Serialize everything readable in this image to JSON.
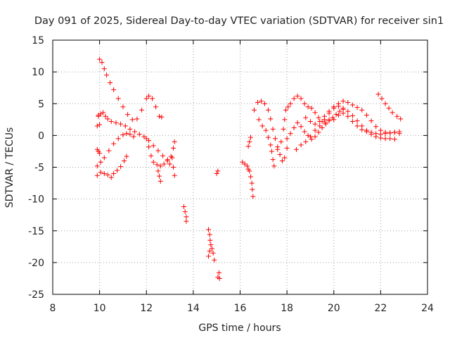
{
  "chart_data": {
    "type": "scatter",
    "title": "Day 091 of 2025, Sidereal Day-to-day VTEC variation (SDTVAR) for receiver sin1",
    "xlabel": "GPS time / hours",
    "ylabel": "SDTVAR / TECUs",
    "xlim": [
      8,
      24
    ],
    "ylim": [
      -25,
      15
    ],
    "xticks": [
      "8",
      "10",
      "12",
      "14",
      "16",
      "18",
      "20",
      "22",
      "24"
    ],
    "yticks": [
      "15",
      "10",
      "5",
      "0",
      "-5",
      "-10",
      "-15",
      "-20",
      "-25"
    ],
    "grid": true,
    "marker": "plus",
    "series": [
      {
        "name": "sin1",
        "color": "#ff0000",
        "points": [
          [
            10.0,
            12.0
          ],
          [
            10.1,
            11.5
          ],
          [
            10.2,
            10.5
          ],
          [
            10.3,
            9.5
          ],
          [
            10.45,
            8.3
          ],
          [
            10.6,
            7.2
          ],
          [
            10.8,
            5.8
          ],
          [
            11.0,
            4.5
          ],
          [
            11.2,
            3.3
          ],
          [
            11.4,
            2.5
          ],
          [
            11.6,
            2.6
          ],
          [
            11.8,
            4.0
          ],
          [
            12.0,
            5.8
          ],
          [
            12.1,
            6.2
          ],
          [
            12.25,
            5.8
          ],
          [
            12.4,
            4.5
          ],
          [
            12.55,
            3.0
          ],
          [
            12.65,
            2.9
          ],
          [
            9.95,
            3.2
          ],
          [
            10.05,
            3.4
          ],
          [
            10.15,
            3.6
          ],
          [
            10.25,
            3.0
          ],
          [
            10.35,
            2.6
          ],
          [
            10.5,
            2.2
          ],
          [
            10.7,
            2.0
          ],
          [
            10.9,
            1.8
          ],
          [
            11.1,
            1.5
          ],
          [
            11.3,
            1.0
          ],
          [
            11.5,
            0.6
          ],
          [
            11.7,
            0.2
          ],
          [
            11.9,
            -0.2
          ],
          [
            12.1,
            -0.8
          ],
          [
            12.3,
            -1.6
          ],
          [
            12.5,
            -2.4
          ],
          [
            12.7,
            -3.2
          ],
          [
            12.9,
            -3.8
          ],
          [
            13.05,
            -3.3
          ],
          [
            13.15,
            -2.0
          ],
          [
            13.2,
            -1.0
          ],
          [
            9.9,
            1.5
          ],
          [
            9.95,
            3.0
          ],
          [
            10.0,
            1.7
          ],
          [
            9.9,
            -2.2
          ],
          [
            9.95,
            -2.5
          ],
          [
            10.0,
            -2.8
          ],
          [
            9.9,
            -4.8
          ],
          [
            10.05,
            -4.2
          ],
          [
            10.2,
            -3.5
          ],
          [
            10.4,
            -2.4
          ],
          [
            10.6,
            -1.3
          ],
          [
            10.8,
            -0.5
          ],
          [
            11.0,
            0.1
          ],
          [
            11.15,
            0.3
          ],
          [
            11.3,
            0.2
          ],
          [
            11.45,
            -0.2
          ],
          [
            9.9,
            -6.3
          ],
          [
            10.05,
            -5.8
          ],
          [
            10.2,
            -6.0
          ],
          [
            10.35,
            -6.2
          ],
          [
            10.5,
            -6.6
          ],
          [
            10.6,
            -6.0
          ],
          [
            10.75,
            -5.5
          ],
          [
            10.9,
            -4.9
          ],
          [
            11.05,
            -4.0
          ],
          [
            11.15,
            -3.3
          ],
          [
            12.0,
            -0.5
          ],
          [
            12.1,
            -1.8
          ],
          [
            12.2,
            -3.2
          ],
          [
            12.3,
            -4.2
          ],
          [
            12.45,
            -4.6
          ],
          [
            12.6,
            -4.8
          ],
          [
            12.75,
            -4.5
          ],
          [
            12.9,
            -4.0
          ],
          [
            13.0,
            -4.5
          ],
          [
            13.1,
            -3.5
          ],
          [
            13.15,
            -5.0
          ],
          [
            12.5,
            -5.6
          ],
          [
            12.55,
            -6.4
          ],
          [
            12.6,
            -7.2
          ],
          [
            13.2,
            -6.3
          ],
          [
            13.6,
            -11.2
          ],
          [
            13.65,
            -12.0
          ],
          [
            13.7,
            -12.8
          ],
          [
            13.7,
            -13.5
          ],
          [
            14.65,
            -14.8
          ],
          [
            14.7,
            -15.6
          ],
          [
            14.72,
            -16.5
          ],
          [
            14.75,
            -17.2
          ],
          [
            14.8,
            -17.8
          ],
          [
            14.85,
            -18.5
          ],
          [
            14.9,
            -19.6
          ],
          [
            14.7,
            -18.2
          ],
          [
            14.65,
            -19.0
          ],
          [
            15.05,
            -22.3
          ],
          [
            15.1,
            -21.6
          ],
          [
            15.12,
            -22.5
          ],
          [
            15.0,
            -6.0
          ],
          [
            15.05,
            -5.6
          ],
          [
            16.1,
            -4.2
          ],
          [
            16.2,
            -4.5
          ],
          [
            16.3,
            -4.8
          ],
          [
            16.35,
            -5.3
          ],
          [
            16.4,
            -5.6
          ],
          [
            16.45,
            -6.5
          ],
          [
            16.5,
            -7.5
          ],
          [
            16.52,
            -8.5
          ],
          [
            16.55,
            -9.6
          ],
          [
            16.45,
            -0.3
          ],
          [
            16.4,
            -1.0
          ],
          [
            16.35,
            -1.7
          ],
          [
            16.6,
            4.0
          ],
          [
            16.75,
            5.2
          ],
          [
            16.9,
            5.4
          ],
          [
            17.05,
            5.0
          ],
          [
            17.2,
            4.0
          ],
          [
            17.3,
            2.6
          ],
          [
            17.4,
            1.0
          ],
          [
            17.5,
            -0.5
          ],
          [
            17.6,
            -1.8
          ],
          [
            17.7,
            -3.0
          ],
          [
            17.8,
            -4.0
          ],
          [
            17.9,
            -3.5
          ],
          [
            18.0,
            -2.0
          ],
          [
            16.8,
            2.5
          ],
          [
            16.95,
            1.5
          ],
          [
            17.1,
            0.8
          ],
          [
            17.2,
            -0.3
          ],
          [
            17.3,
            -1.5
          ],
          [
            17.35,
            -2.5
          ],
          [
            17.4,
            -3.8
          ],
          [
            17.45,
            -4.8
          ],
          [
            17.6,
            -2.2
          ],
          [
            17.75,
            -1.0
          ],
          [
            17.85,
            1.0
          ],
          [
            17.9,
            2.5
          ],
          [
            17.95,
            4.0
          ],
          [
            18.05,
            4.5
          ],
          [
            18.15,
            5.0
          ],
          [
            18.3,
            5.8
          ],
          [
            18.45,
            6.2
          ],
          [
            18.6,
            5.8
          ],
          [
            18.75,
            5.0
          ],
          [
            18.9,
            4.5
          ],
          [
            19.05,
            4.3
          ],
          [
            19.2,
            3.6
          ],
          [
            19.35,
            2.8
          ],
          [
            19.5,
            2.2
          ],
          [
            19.65,
            2.0
          ],
          [
            19.8,
            2.5
          ],
          [
            18.0,
            -0.5
          ],
          [
            18.15,
            0.3
          ],
          [
            18.3,
            1.2
          ],
          [
            18.45,
            2.0
          ],
          [
            18.6,
            1.4
          ],
          [
            18.75,
            0.6
          ],
          [
            18.9,
            0.0
          ],
          [
            19.05,
            -0.6
          ],
          [
            19.2,
            -0.2
          ],
          [
            19.35,
            0.5
          ],
          [
            19.5,
            1.2
          ],
          [
            19.65,
            1.8
          ],
          [
            19.8,
            2.3
          ],
          [
            19.95,
            2.8
          ],
          [
            20.1,
            3.3
          ],
          [
            20.25,
            3.8
          ],
          [
            20.4,
            4.1
          ],
          [
            18.4,
            -2.2
          ],
          [
            18.6,
            -1.5
          ],
          [
            18.8,
            -1.0
          ],
          [
            19.0,
            -0.2
          ],
          [
            19.2,
            0.8
          ],
          [
            19.4,
            1.5
          ],
          [
            19.6,
            2.5
          ],
          [
            19.8,
            3.5
          ],
          [
            20.0,
            4.3
          ],
          [
            20.2,
            5.0
          ],
          [
            20.4,
            5.4
          ],
          [
            20.6,
            5.2
          ],
          [
            20.8,
            4.8
          ],
          [
            21.0,
            4.4
          ],
          [
            21.2,
            4.0
          ],
          [
            21.4,
            3.2
          ],
          [
            21.6,
            2.3
          ],
          [
            21.8,
            1.4
          ],
          [
            22.0,
            0.8
          ],
          [
            22.2,
            0.5
          ],
          [
            22.4,
            0.4
          ],
          [
            22.6,
            0.5
          ],
          [
            22.8,
            0.6
          ],
          [
            18.8,
            2.8
          ],
          [
            19.0,
            2.2
          ],
          [
            19.2,
            1.8
          ],
          [
            19.4,
            2.2
          ],
          [
            19.6,
            3.0
          ],
          [
            19.8,
            3.8
          ],
          [
            20.0,
            4.5
          ],
          [
            20.2,
            4.6
          ],
          [
            20.4,
            4.3
          ],
          [
            20.6,
            3.8
          ],
          [
            20.8,
            3.1
          ],
          [
            21.0,
            2.3
          ],
          [
            21.2,
            1.5
          ],
          [
            21.4,
            0.8
          ],
          [
            21.6,
            0.2
          ],
          [
            21.8,
            -0.2
          ],
          [
            22.0,
            -0.4
          ],
          [
            22.2,
            -0.5
          ],
          [
            22.4,
            -0.5
          ],
          [
            22.6,
            -0.6
          ],
          [
            20.0,
            2.5
          ],
          [
            20.2,
            3.2
          ],
          [
            20.4,
            3.5
          ],
          [
            20.6,
            3.0
          ],
          [
            20.8,
            2.2
          ],
          [
            21.0,
            1.5
          ],
          [
            21.2,
            0.9
          ],
          [
            21.4,
            0.6
          ],
          [
            21.6,
            0.5
          ],
          [
            21.8,
            0.3
          ],
          [
            22.0,
            0.2
          ],
          [
            22.2,
            0.3
          ],
          [
            22.4,
            0.4
          ],
          [
            22.6,
            0.5
          ],
          [
            22.8,
            0.3
          ],
          [
            21.9,
            6.5
          ],
          [
            22.05,
            5.8
          ],
          [
            22.2,
            5.0
          ],
          [
            22.35,
            4.3
          ],
          [
            22.5,
            3.6
          ],
          [
            22.7,
            3.0
          ],
          [
            22.85,
            2.6
          ]
        ]
      }
    ]
  }
}
